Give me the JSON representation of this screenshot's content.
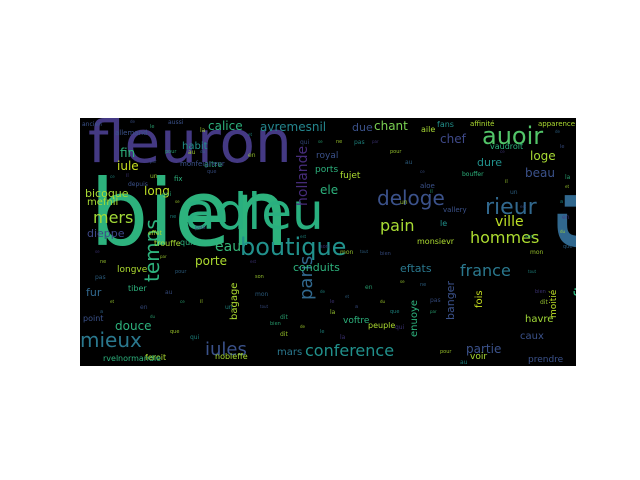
{
  "wordcloud": {
    "background": "#000000",
    "words": [
      {
        "text": "bien",
        "color": "#2db27d",
        "v": false
      },
      {
        "text": "eft",
        "color": "#31688e",
        "v": true
      },
      {
        "text": "fleuron",
        "color": "#443983",
        "v": false
      },
      {
        "text": "adieu",
        "color": "#29af7f",
        "v": false
      },
      {
        "text": "boutique",
        "color": "#21918c",
        "v": false
      },
      {
        "text": "auoir",
        "color": "#52c569",
        "v": false
      },
      {
        "text": "rieur",
        "color": "#31688e",
        "v": false
      },
      {
        "text": "deloge",
        "color": "#3b528b",
        "v": false
      },
      {
        "text": "temps",
        "color": "#2db27d",
        "v": true
      },
      {
        "text": "mieux",
        "color": "#2a788e",
        "v": false
      },
      {
        "text": "iules",
        "color": "#3b528b",
        "v": false
      },
      {
        "text": "conference",
        "color": "#21918c",
        "v": false
      },
      {
        "text": "paris",
        "color": "#31688e",
        "v": true
      },
      {
        "text": "france",
        "color": "#2a788e",
        "v": false
      },
      {
        "text": "noftre",
        "color": "#2db27d",
        "v": true
      },
      {
        "text": "hommes",
        "color": "#addc30",
        "v": false
      },
      {
        "text": "pain",
        "color": "#a8db34",
        "v": false
      },
      {
        "text": "eau",
        "color": "#35b779",
        "v": false
      },
      {
        "text": "mers",
        "color": "#a2da37",
        "v": false
      },
      {
        "text": "ville",
        "color": "#bddf26",
        "v": false
      },
      {
        "text": "calice",
        "color": "#2db27d",
        "v": false
      },
      {
        "text": "avremesnil",
        "color": "#24868e",
        "v": false
      },
      {
        "text": "chant",
        "color": "#7ad151",
        "v": false
      },
      {
        "text": "partie",
        "color": "#3b528b",
        "v": false
      },
      {
        "text": "porte",
        "color": "#addc30",
        "v": false
      },
      {
        "text": "chef",
        "color": "#3e4989",
        "v": false
      },
      {
        "text": "beau",
        "color": "#3b528b",
        "v": false
      },
      {
        "text": "loge",
        "color": "#a8db34",
        "v": false
      },
      {
        "text": "dure",
        "color": "#21918c",
        "v": false
      },
      {
        "text": "conduits",
        "color": "#2db27d",
        "v": false
      },
      {
        "text": "eftats",
        "color": "#2a788e",
        "v": false
      },
      {
        "text": "hollande",
        "color": "#472d7b",
        "v": true
      },
      {
        "text": "long",
        "color": "#bddf26",
        "v": false
      },
      {
        "text": "fin",
        "color": "#2db27d",
        "v": false
      },
      {
        "text": "iule",
        "color": "#c8e020",
        "v": false
      },
      {
        "text": "habit",
        "color": "#21918c",
        "v": false
      },
      {
        "text": "ele",
        "color": "#2db27d",
        "v": false
      },
      {
        "text": "due",
        "color": "#3b528b",
        "v": false
      },
      {
        "text": "fur",
        "color": "#31688e",
        "v": false
      },
      {
        "text": "douce",
        "color": "#2db27d",
        "v": false
      },
      {
        "text": "mars",
        "color": "#2a788e",
        "v": false
      },
      {
        "text": "havre",
        "color": "#a2da37",
        "v": false
      },
      {
        "text": "caux",
        "color": "#3b528b",
        "v": false
      },
      {
        "text": "dieppe",
        "color": "#3e4989",
        "v": false
      },
      {
        "text": "bicoque",
        "color": "#a8db34",
        "v": false
      },
      {
        "text": "mefnil",
        "color": "#a8db34",
        "v": false
      },
      {
        "text": "banger",
        "color": "#3b528b",
        "v": true
      },
      {
        "text": "fois",
        "color": "#c8e020",
        "v": true
      },
      {
        "text": "ports",
        "color": "#2db27d",
        "v": false
      },
      {
        "text": "royal",
        "color": "#3b528b",
        "v": false
      },
      {
        "text": "bagage",
        "color": "#addc30",
        "v": true
      },
      {
        "text": "voftre",
        "color": "#2db27d",
        "v": false
      },
      {
        "text": "enuoye",
        "color": "#2db27d",
        "v": true
      },
      {
        "text": "voir",
        "color": "#a8db34",
        "v": false
      },
      {
        "text": "prendre",
        "color": "#3b528b",
        "v": false
      },
      {
        "text": "moitié",
        "color": "#bddf26",
        "v": true
      },
      {
        "text": "feroit",
        "color": "#addc30",
        "v": false
      },
      {
        "text": "rvel",
        "color": "#2db27d",
        "v": false
      },
      {
        "text": "normandie",
        "color": "#2db27d",
        "v": false
      },
      {
        "text": "point",
        "color": "#3b528b",
        "v": false
      },
      {
        "text": "longve",
        "color": "#addc30",
        "v": false
      },
      {
        "text": "tiber",
        "color": "#2db27d",
        "v": false
      },
      {
        "text": "trouffe",
        "color": "#a8db34",
        "v": false
      },
      {
        "text": "quitte",
        "color": "#2db27d",
        "v": false
      },
      {
        "text": "monsievr",
        "color": "#addc30",
        "v": false
      },
      {
        "text": "fujet",
        "color": "#addc30",
        "v": false
      },
      {
        "text": "fans",
        "color": "#21918c",
        "v": false
      },
      {
        "text": "affinité",
        "color": "#addc30",
        "v": false
      },
      {
        "text": "apparence",
        "color": "#addc30",
        "v": false
      },
      {
        "text": "aile",
        "color": "#a8db34",
        "v": false
      },
      {
        "text": "vaudroit",
        "color": "#2db27d",
        "v": false
      },
      {
        "text": "aloe",
        "color": "#3b528b",
        "v": false
      },
      {
        "text": "fix",
        "color": "#2db27d",
        "v": false
      },
      {
        "text": "allemand",
        "color": "#3b528b",
        "v": false
      },
      {
        "text": "aitre",
        "color": "#2db27d",
        "v": false
      },
      {
        "text": "monfeigneur",
        "color": "#3b528b",
        "v": false
      },
      {
        "text": "vallery",
        "color": "#3b528b",
        "v": false
      },
      {
        "text": "peuple",
        "color": "#addc30",
        "v": false
      },
      {
        "text": "le",
        "color": "#21918c",
        "v": false
      },
      {
        "text": "aussi",
        "color": "#3b528b",
        "v": false
      },
      {
        "text": "nobleffe",
        "color": "#a8db34",
        "v": false
      },
      {
        "text": "ancien",
        "color": "#3b528b",
        "v": false
      },
      {
        "text": "bouffer",
        "color": "#2db27d",
        "v": false
      },
      {
        "text": "depuis",
        "color": "#3b528b",
        "v": false
      },
      {
        "text": "effet",
        "color": "#addc30",
        "v": false
      }
    ]
  }
}
